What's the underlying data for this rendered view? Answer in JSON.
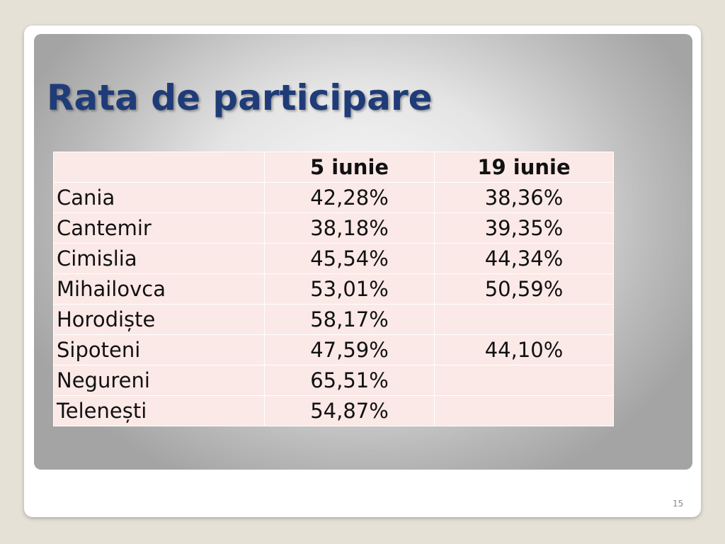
{
  "slide": {
    "title": "Rata de participare",
    "page_number": "15"
  },
  "table": {
    "headers": [
      "",
      "5 iunie",
      "19 iunie"
    ],
    "rows": [
      [
        "Cania",
        "42,28%",
        "38,36%"
      ],
      [
        "Cantemir",
        "38,18%",
        "39,35%"
      ],
      [
        "Cimislia",
        "45,54%",
        "44,34%"
      ],
      [
        "Mihailovca",
        "53,01%",
        "50,59%"
      ],
      [
        "Horodiște",
        "58,17%",
        ""
      ],
      [
        "Sipoteni",
        "47,59%",
        "44,10%"
      ],
      [
        "Negureni",
        "65,51%",
        ""
      ],
      [
        "Telenești",
        "54,87%",
        ""
      ]
    ]
  }
}
